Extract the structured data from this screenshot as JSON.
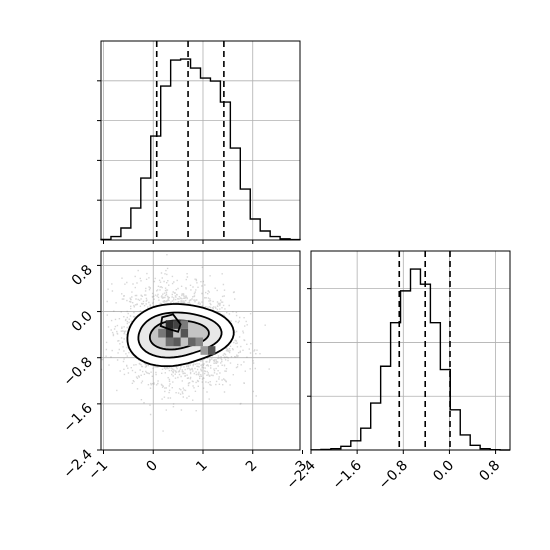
{
  "chart_data": [
    {
      "id": "hist1",
      "type": "bar",
      "description_role": "1D marginal histogram of parameter 1 (top-left panel)",
      "bin_range": [
        -1.05,
        2.95
      ],
      "counts": [
        3,
        17,
        60,
        160,
        310,
        520,
        770,
        900,
        905,
        860,
        810,
        795,
        690,
        460,
        255,
        105,
        45,
        17,
        6,
        2
      ],
      "quantiles": [
        0.07,
        0.7,
        1.42
      ],
      "grid": true,
      "yticks_labeled": false
    },
    {
      "id": "hist2d",
      "type": "heatmap",
      "description_role": "2D density / scatter of parameter 2 vs parameter 1 (bottom-left panel)",
      "xlim": [
        -1.05,
        2.95
      ],
      "ylim": [
        -2.4,
        1.05
      ],
      "xticks": [
        -1,
        0,
        1,
        2,
        3
      ],
      "xtick_labels": [
        "−1",
        "0",
        "1",
        "2",
        "3"
      ],
      "yticks": [
        -2.4,
        -1.6,
        -0.8,
        0.0,
        0.8
      ],
      "ytick_labels": [
        "−2.4",
        "−1.6",
        "−0.8",
        "0.0",
        "0.8"
      ],
      "density_center": [
        0.5,
        -0.4
      ],
      "grid": true
    },
    {
      "id": "hist2",
      "type": "bar",
      "description_role": "1D marginal histogram of parameter 2 (bottom-right panel)",
      "bin_range": [
        -2.4,
        1.05
      ],
      "counts": [
        1,
        3,
        8,
        22,
        55,
        130,
        280,
        500,
        760,
        950,
        1080,
        990,
        760,
        480,
        240,
        90,
        28,
        8,
        2,
        0
      ],
      "quantiles": [
        -0.87,
        -0.42,
        0.01
      ],
      "xticks": [
        -2.4,
        -1.6,
        -0.8,
        0.0,
        0.8
      ],
      "xtick_labels": [
        "−2.4",
        "−1.6",
        "−0.8",
        "0.0",
        "0.8"
      ],
      "grid": true,
      "yticks_labeled": false
    }
  ]
}
